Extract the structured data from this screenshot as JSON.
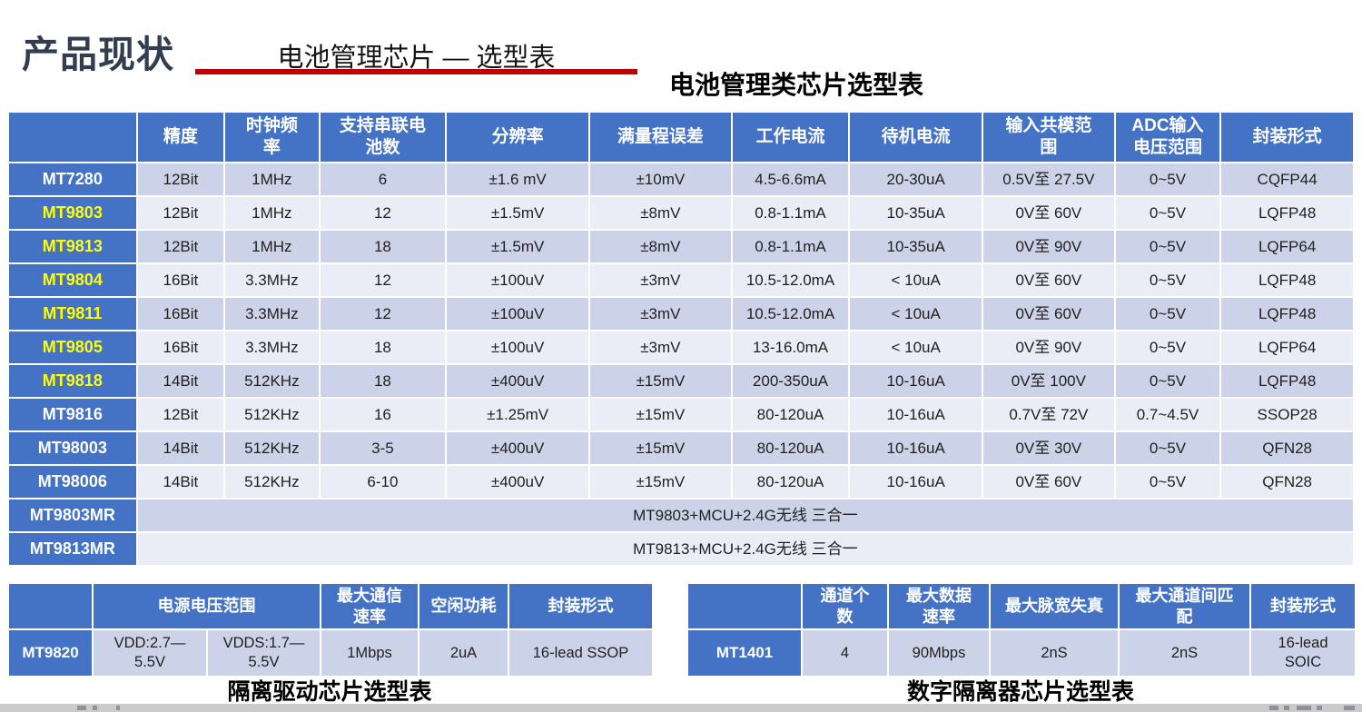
{
  "page": {
    "title": "产品现状",
    "subtitle": "电池管理芯片 — 选型表",
    "main_table_title": "电池管理类芯片选型表"
  },
  "colors": {
    "header_blue": "#4472c4",
    "band_dark": "#ccd3e8",
    "band_light": "#eaecf6",
    "accent_red": "#c00000",
    "label_yellow": "#ffff00",
    "title_dark": "#323e50"
  },
  "main_table": {
    "headers": [
      "",
      "精度",
      "时钟频\n率",
      "支持串联电\n池数",
      "分辨率",
      "满量程误差",
      "工作电流",
      "待机电流",
      "输入共模范\n围",
      "ADC输入\n电压范围",
      "封装形式"
    ],
    "rows": [
      {
        "model": "MT7280",
        "model_color": "white",
        "cells": [
          "12Bit",
          "1MHz",
          "6",
          "±1.6 mV",
          "±10mV",
          "4.5-6.6mA",
          "20-30uA",
          "0.5V至 27.5V",
          "0~5V",
          "CQFP44"
        ]
      },
      {
        "model": "MT9803",
        "model_color": "yellow",
        "cells": [
          "12Bit",
          "1MHz",
          "12",
          "±1.5mV",
          "±8mV",
          "0.8-1.1mA",
          "10-35uA",
          "0V至 60V",
          "0~5V",
          "LQFP48"
        ]
      },
      {
        "model": "MT9813",
        "model_color": "yellow",
        "cells": [
          "12Bit",
          "1MHz",
          "18",
          "±1.5mV",
          "±8mV",
          "0.8-1.1mA",
          "10-35uA",
          "0V至 90V",
          "0~5V",
          "LQFP64"
        ]
      },
      {
        "model": "MT9804",
        "model_color": "yellow",
        "cells": [
          "16Bit",
          "3.3MHz",
          "12",
          "±100uV",
          "±3mV",
          "10.5-12.0mA",
          "< 10uA",
          "0V至 60V",
          "0~5V",
          "LQFP48"
        ]
      },
      {
        "model": "MT9811",
        "model_color": "yellow",
        "cells": [
          "16Bit",
          "3.3MHz",
          "12",
          "±100uV",
          "±3mV",
          "10.5-12.0mA",
          "< 10uA",
          "0V至 60V",
          "0~5V",
          "LQFP48"
        ]
      },
      {
        "model": "MT9805",
        "model_color": "yellow",
        "cells": [
          "16Bit",
          "3.3MHz",
          "18",
          "±100uV",
          "±3mV",
          "13-16.0mA",
          "< 10uA",
          "0V至 90V",
          "0~5V",
          "LQFP64"
        ]
      },
      {
        "model": "MT9818",
        "model_color": "yellow",
        "cells": [
          "14Bit",
          "512KHz",
          "18",
          "±400uV",
          "±15mV",
          "200-350uA",
          "10-16uA",
          "0V至 100V",
          "0~5V",
          "LQFP48"
        ]
      },
      {
        "model": "MT9816",
        "model_color": "white",
        "cells": [
          "12Bit",
          "512KHz",
          "16",
          "±1.25mV",
          "±15mV",
          "80-120uA",
          "10-16uA",
          "0.7V至 72V",
          "0.7~4.5V",
          "SSOP28"
        ]
      },
      {
        "model": "MT98003",
        "model_color": "white",
        "cells": [
          "14Bit",
          "512KHz",
          "3-5",
          "±400uV",
          "±15mV",
          "80-120uA",
          "10-16uA",
          "0V至 30V",
          "0~5V",
          "QFN28"
        ]
      },
      {
        "model": "MT98006",
        "model_color": "white",
        "cells": [
          "14Bit",
          "512KHz",
          "6-10",
          "±400uV",
          "±15mV",
          "80-120uA",
          "10-16uA",
          "0V至 60V",
          "0~5V",
          "QFN28"
        ]
      }
    ],
    "merged_rows": [
      {
        "model": "MT9803MR",
        "text": "MT9803+MCU+2.4G无线 三合一"
      },
      {
        "model": "MT9813MR",
        "text": "MT9813+MCU+2.4G无线 三合一"
      }
    ]
  },
  "left_table": {
    "headers": [
      "",
      "电源电压范围",
      "最大通信\n速率",
      "空闲功耗",
      "封装形式"
    ],
    "row": {
      "model": "MT9820",
      "cells": [
        "VDD:2.7—\n5.5V",
        "VDDS:1.7—\n5.5V",
        "1Mbps",
        "2uA",
        "16-lead SSOP"
      ]
    },
    "caption": "隔离驱动芯片选型表"
  },
  "right_table": {
    "headers": [
      "",
      "通道个\n数",
      "最大数据\n速率",
      "最大脉宽失真",
      "最大通道间匹\n配",
      "封装形式"
    ],
    "row": {
      "model": "MT1401",
      "cells": [
        "4",
        "90Mbps",
        "2nS",
        "2nS",
        "16-lead\nSOIC"
      ]
    },
    "caption": "数字隔离器芯片选型表"
  }
}
